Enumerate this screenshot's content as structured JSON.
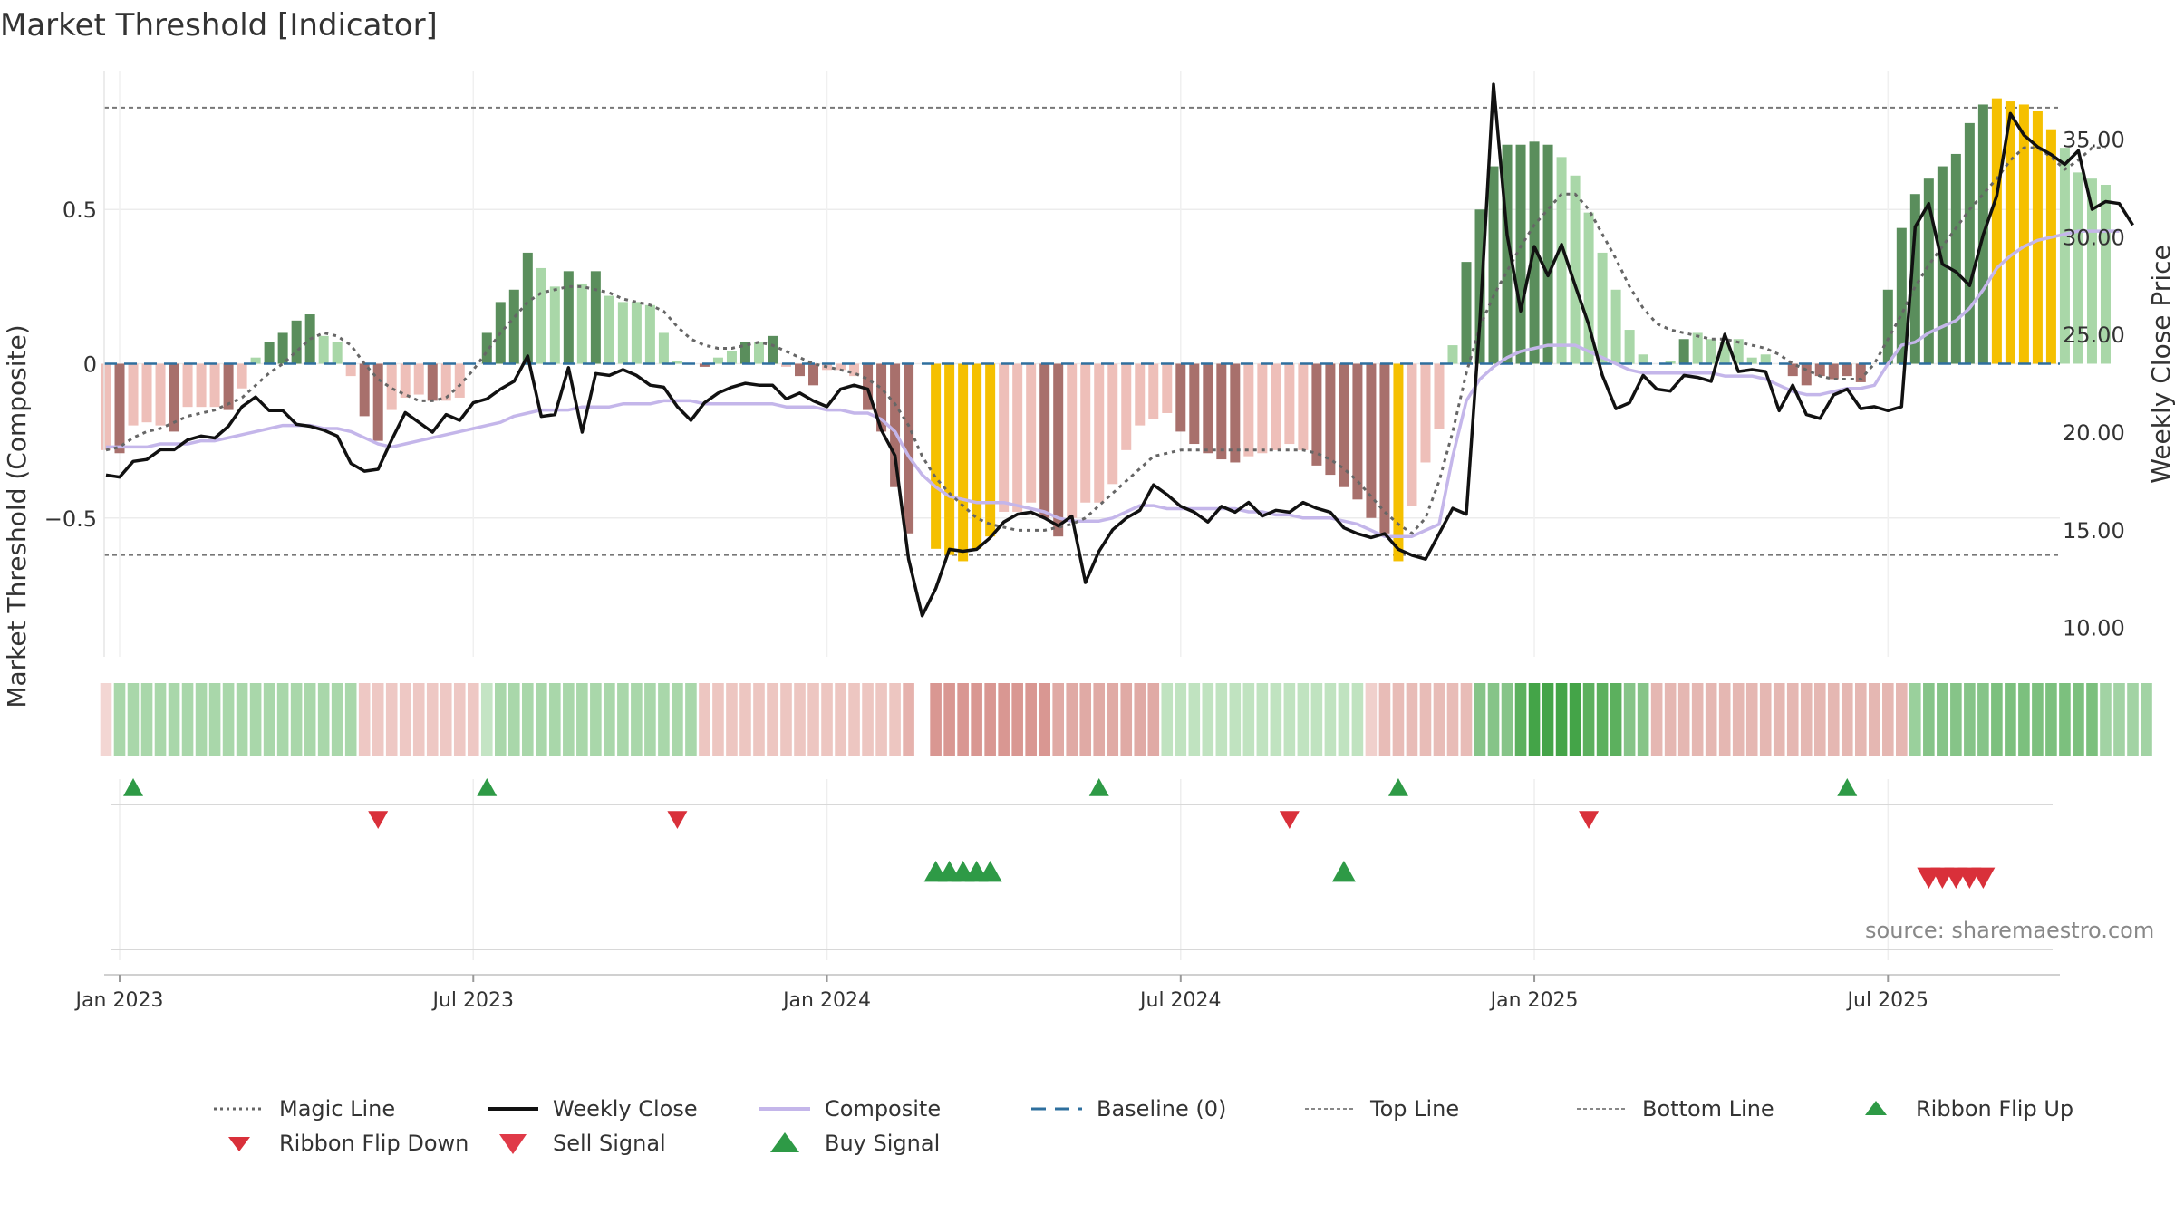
{
  "title": "Market Threshold [Indicator]",
  "source": "source: sharemaestro.com",
  "colors": {
    "pos_strong": "#5a8e5c",
    "pos_weak": "#a9d7a8",
    "neg_strong": "#a8706c",
    "neg_weak": "#eebfb9",
    "extreme": "#f5c000",
    "close_line": "#111111",
    "composite_line": "#c4b6ea",
    "magic_line": "#666666",
    "baseline": "#2e6f9e",
    "threshold": "#777777",
    "buy": "#2e9a46",
    "sell": "#d9303a"
  },
  "legend": [
    {
      "key": "magic",
      "label": "Magic Line"
    },
    {
      "key": "close",
      "label": "Weekly Close"
    },
    {
      "key": "composite",
      "label": "Composite"
    },
    {
      "key": "baseline",
      "label": "Baseline (0)"
    },
    {
      "key": "top",
      "label": "Top Line"
    },
    {
      "key": "bottom",
      "label": "Bottom Line"
    },
    {
      "key": "flipup",
      "label": "Ribbon Flip Up"
    },
    {
      "key": "flipdown",
      "label": "Ribbon Flip Down"
    },
    {
      "key": "sell",
      "label": "Sell Signal"
    },
    {
      "key": "buy",
      "label": "Buy Signal"
    }
  ],
  "chart_data": {
    "type": "bar",
    "title": "Market Threshold [Indicator]",
    "ylabel": "Market Threshold (Composite)",
    "y2label": "Weekly Close Price",
    "ylim": [
      -0.95,
      0.95
    ],
    "y2lim": [
      8.5,
      38.5
    ],
    "y_ticks": [
      "0.5",
      "0",
      "−0.5"
    ],
    "y_tick_values": [
      0.5,
      0,
      -0.5
    ],
    "y2_ticks": [
      "35.00",
      "30.00",
      "25.00",
      "20.00",
      "15.00",
      "10.00"
    ],
    "y2_tick_values": [
      35,
      30,
      25,
      20,
      15,
      10
    ],
    "x_ticks": [
      "Jan 2023",
      "Jul 2023",
      "Jan 2024",
      "Jul 2024",
      "Jan 2025",
      "Jul 2025"
    ],
    "x_tick_weeks": [
      1,
      27,
      53,
      79,
      105,
      131
    ],
    "x_unit": "week index (0 = 2022-12-26)",
    "top_line": 0.83,
    "bottom_line": -0.62,
    "baseline": 0,
    "composite_bars": [
      -0.28,
      -0.29,
      -0.2,
      -0.19,
      -0.2,
      -0.22,
      -0.14,
      -0.14,
      -0.14,
      -0.15,
      -0.08,
      0.02,
      0.07,
      0.1,
      0.14,
      0.16,
      0.09,
      0.07,
      -0.04,
      -0.17,
      -0.25,
      -0.15,
      -0.11,
      -0.1,
      -0.12,
      -0.12,
      -0.11,
      0.0,
      0.1,
      0.2,
      0.24,
      0.36,
      0.31,
      0.25,
      0.3,
      0.26,
      0.3,
      0.22,
      0.2,
      0.2,
      0.19,
      0.1,
      0.01,
      0.0,
      -0.01,
      0.02,
      0.04,
      0.07,
      0.07,
      0.09,
      -0.01,
      -0.04,
      -0.07,
      -0.02,
      -0.02,
      -0.04,
      -0.15,
      -0.22,
      -0.4,
      -0.55,
      0.0,
      -0.6,
      -0.62,
      -0.64,
      -0.6,
      -0.56,
      -0.48,
      -0.48,
      -0.45,
      -0.5,
      -0.56,
      -0.5,
      -0.45,
      -0.45,
      -0.39,
      -0.28,
      -0.2,
      -0.18,
      -0.16,
      -0.22,
      -0.26,
      -0.29,
      -0.31,
      -0.32,
      -0.3,
      -0.29,
      -0.28,
      -0.26,
      -0.28,
      -0.33,
      -0.36,
      -0.4,
      -0.44,
      -0.5,
      -0.55,
      -0.64,
      -0.46,
      -0.32,
      -0.21,
      0.06,
      0.33,
      0.5,
      0.64,
      0.71,
      0.71,
      0.72,
      0.71,
      0.67,
      0.61,
      0.49,
      0.36,
      0.24,
      0.11,
      0.03,
      0.0,
      0.01,
      0.08,
      0.1,
      0.08,
      0.07,
      0.08,
      0.02,
      0.03,
      0.0,
      -0.04,
      -0.07,
      -0.04,
      -0.05,
      -0.04,
      -0.06,
      0.0,
      0.24,
      0.44,
      0.55,
      0.6,
      0.64,
      0.68,
      0.78,
      0.84,
      0.86,
      0.85,
      0.84,
      0.82,
      0.76,
      0.7,
      0.62,
      0.6,
      0.58
    ],
    "bar_categories": [
      "nw",
      "ns",
      "nw",
      "nw",
      "nw",
      "ns",
      "nw",
      "nw",
      "nw",
      "ns",
      "nw",
      "pw",
      "ps",
      "ps",
      "ps",
      "ps",
      "pw",
      "pw",
      "nw",
      "ns",
      "ns",
      "nw",
      "nw",
      "nw",
      "ns",
      "nw",
      "nw",
      "pw",
      "ps",
      "ps",
      "ps",
      "ps",
      "pw",
      "pw",
      "ps",
      "pw",
      "ps",
      "pw",
      "pw",
      "pw",
      "pw",
      "pw",
      "pw",
      "pw",
      "ns",
      "pw",
      "pw",
      "ps",
      "pw",
      "ps",
      "nw",
      "ns",
      "ns",
      "nw",
      "nw",
      "nw",
      "ns",
      "ns",
      "ns",
      "ns",
      "nw",
      "ex",
      "ex",
      "ex",
      "ex",
      "ex",
      "nw",
      "nw",
      "nw",
      "ns",
      "ns",
      "nw",
      "nw",
      "nw",
      "nw",
      "nw",
      "nw",
      "nw",
      "nw",
      "ns",
      "ns",
      "ns",
      "ns",
      "ns",
      "nw",
      "nw",
      "nw",
      "nw",
      "nw",
      "ns",
      "ns",
      "ns",
      "ns",
      "ns",
      "ns",
      "ex",
      "nw",
      "nw",
      "nw",
      "pw",
      "ps",
      "ps",
      "ps",
      "ps",
      "ps",
      "ps",
      "ps",
      "pw",
      "pw",
      "pw",
      "pw",
      "pw",
      "pw",
      "pw",
      "pw",
      "pw",
      "ps",
      "pw",
      "pw",
      "pw",
      "pw",
      "pw",
      "pw",
      "pw",
      "ns",
      "ns",
      "ns",
      "ns",
      "ns",
      "ns",
      "pw",
      "ps",
      "ps",
      "ps",
      "ps",
      "ps",
      "ps",
      "ps",
      "ps",
      "ex",
      "ex",
      "ex",
      "ex",
      "ex",
      "pw",
      "pw",
      "pw",
      "pw"
    ],
    "series": [
      {
        "name": "Magic Line",
        "axis": "left",
        "style": "dotted",
        "values": [
          -0.28,
          -0.27,
          -0.24,
          -0.22,
          -0.21,
          -0.19,
          -0.17,
          -0.16,
          -0.15,
          -0.13,
          -0.11,
          -0.07,
          -0.03,
          0.0,
          0.04,
          0.08,
          0.1,
          0.09,
          0.06,
          0.0,
          -0.05,
          -0.08,
          -0.1,
          -0.12,
          -0.12,
          -0.11,
          -0.07,
          -0.02,
          0.04,
          0.1,
          0.15,
          0.2,
          0.23,
          0.24,
          0.25,
          0.25,
          0.24,
          0.23,
          0.21,
          0.2,
          0.19,
          0.17,
          0.12,
          0.08,
          0.06,
          0.05,
          0.05,
          0.06,
          0.07,
          0.06,
          0.04,
          0.02,
          0.0,
          -0.01,
          -0.02,
          -0.03,
          -0.05,
          -0.08,
          -0.13,
          -0.2,
          -0.3,
          -0.37,
          -0.42,
          -0.46,
          -0.5,
          -0.52,
          -0.53,
          -0.54,
          -0.54,
          -0.54,
          -0.53,
          -0.52,
          -0.5,
          -0.46,
          -0.42,
          -0.38,
          -0.34,
          -0.3,
          -0.29,
          -0.28,
          -0.28,
          -0.28,
          -0.28,
          -0.28,
          -0.28,
          -0.28,
          -0.28,
          -0.28,
          -0.28,
          -0.29,
          -0.31,
          -0.34,
          -0.38,
          -0.43,
          -0.48,
          -0.52,
          -0.55,
          -0.5,
          -0.38,
          -0.22,
          -0.03,
          0.12,
          0.22,
          0.3,
          0.38,
          0.45,
          0.5,
          0.55,
          0.55,
          0.5,
          0.42,
          0.34,
          0.25,
          0.18,
          0.13,
          0.11,
          0.1,
          0.09,
          0.08,
          0.08,
          0.07,
          0.06,
          0.05,
          0.03,
          0.0,
          -0.02,
          -0.04,
          -0.05,
          -0.05,
          -0.05,
          0.0,
          0.08,
          0.16,
          0.25,
          0.32,
          0.38,
          0.44,
          0.5,
          0.55,
          0.6,
          0.66,
          0.7,
          0.7,
          0.67,
          0.63,
          0.66,
          0.7,
          0.7
        ]
      },
      {
        "name": "Weekly Close",
        "axis": "right",
        "style": "solid",
        "values": [
          17.8,
          17.7,
          18.5,
          18.6,
          19.1,
          19.1,
          19.6,
          19.8,
          19.7,
          20.3,
          21.3,
          21.8,
          21.1,
          21.1,
          20.4,
          20.3,
          20.1,
          19.8,
          18.4,
          18.0,
          18.1,
          19.6,
          21.0,
          20.5,
          20.0,
          20.9,
          20.6,
          21.5,
          21.7,
          22.2,
          22.6,
          23.9,
          20.8,
          20.9,
          23.3,
          20.0,
          23.0,
          22.9,
          23.2,
          22.9,
          22.4,
          22.3,
          21.3,
          20.6,
          21.5,
          22.0,
          22.3,
          22.5,
          22.4,
          22.4,
          21.7,
          22.0,
          21.6,
          21.3,
          22.2,
          22.4,
          22.2,
          20.1,
          18.8,
          13.5,
          10.6,
          12.0,
          14.0,
          13.9,
          14.0,
          14.6,
          15.4,
          15.8,
          15.9,
          15.6,
          15.2,
          15.7,
          12.3,
          13.9,
          15.0,
          15.6,
          16.0,
          17.3,
          16.8,
          16.2,
          15.9,
          15.4,
          16.2,
          15.9,
          16.4,
          15.7,
          16.0,
          15.9,
          16.4,
          16.1,
          15.9,
          15.1,
          14.8,
          14.6,
          14.8,
          14.0,
          13.7,
          13.5,
          14.8,
          16.1,
          15.8,
          25.7,
          37.8,
          30.1,
          26.2,
          29.5,
          28.0,
          29.6,
          27.5,
          25.5,
          22.9,
          21.2,
          21.5,
          22.9,
          22.2,
          22.1,
          22.9,
          22.8,
          22.6,
          25.0,
          23.1,
          23.2,
          23.1,
          21.1,
          22.4,
          20.9,
          20.7,
          21.9,
          22.2,
          21.2,
          21.3,
          21.1,
          21.3,
          30.5,
          31.7,
          28.6,
          28.2,
          27.5,
          30.1,
          32.1,
          36.3,
          35.2,
          34.6,
          34.2,
          33.7,
          34.4,
          31.4,
          31.8,
          31.7,
          30.6
        ]
      },
      {
        "name": "Composite",
        "axis": "left",
        "style": "solid",
        "values": [
          -0.27,
          -0.27,
          -0.27,
          -0.27,
          -0.26,
          -0.26,
          -0.26,
          -0.25,
          -0.25,
          -0.24,
          -0.23,
          -0.22,
          -0.21,
          -0.2,
          -0.2,
          -0.2,
          -0.21,
          -0.21,
          -0.22,
          -0.24,
          -0.26,
          -0.27,
          -0.26,
          -0.25,
          -0.24,
          -0.23,
          -0.22,
          -0.21,
          -0.2,
          -0.19,
          -0.17,
          -0.16,
          -0.15,
          -0.15,
          -0.15,
          -0.14,
          -0.14,
          -0.14,
          -0.13,
          -0.13,
          -0.13,
          -0.12,
          -0.12,
          -0.12,
          -0.13,
          -0.13,
          -0.13,
          -0.13,
          -0.13,
          -0.13,
          -0.14,
          -0.14,
          -0.14,
          -0.15,
          -0.15,
          -0.16,
          -0.16,
          -0.18,
          -0.22,
          -0.3,
          -0.36,
          -0.4,
          -0.43,
          -0.44,
          -0.45,
          -0.45,
          -0.45,
          -0.46,
          -0.47,
          -0.48,
          -0.5,
          -0.51,
          -0.51,
          -0.51,
          -0.5,
          -0.48,
          -0.46,
          -0.46,
          -0.47,
          -0.47,
          -0.47,
          -0.47,
          -0.47,
          -0.47,
          -0.48,
          -0.48,
          -0.49,
          -0.49,
          -0.5,
          -0.5,
          -0.5,
          -0.51,
          -0.52,
          -0.54,
          -0.56,
          -0.56,
          -0.56,
          -0.54,
          -0.52,
          -0.3,
          -0.12,
          -0.05,
          -0.01,
          0.02,
          0.04,
          0.05,
          0.06,
          0.06,
          0.06,
          0.04,
          0.02,
          0.0,
          -0.02,
          -0.03,
          -0.03,
          -0.03,
          -0.03,
          -0.03,
          -0.03,
          -0.04,
          -0.04,
          -0.04,
          -0.05,
          -0.07,
          -0.09,
          -0.1,
          -0.1,
          -0.09,
          -0.08,
          -0.08,
          -0.07,
          0.0,
          0.06,
          0.07,
          0.1,
          0.12,
          0.14,
          0.18,
          0.24,
          0.31,
          0.35,
          0.38,
          0.4,
          0.41,
          0.42,
          0.43,
          0.43,
          0.43,
          0.43
        ]
      }
    ],
    "ribbon_colors": [
      "#f3d6d3",
      "#a9d7aa",
      "#a9d7aa",
      "#a9d7aa",
      "#a9d7aa",
      "#a9d7aa",
      "#a9d7aa",
      "#a9d7aa",
      "#a9d7aa",
      "#a9d7aa",
      "#a9d7aa",
      "#a9d7aa",
      "#a9d7aa",
      "#a9d7aa",
      "#a9d7aa",
      "#a9d7aa",
      "#a9d7aa",
      "#a9d7aa",
      "#a9d7aa",
      "#eec8c4",
      "#eec8c4",
      "#eec8c4",
      "#eec8c4",
      "#eec8c4",
      "#eec8c4",
      "#eec8c4",
      "#eec8c4",
      "#eec8c4",
      "#c4e4c4",
      "#a9d7aa",
      "#a9d7aa",
      "#a9d7aa",
      "#a9d7aa",
      "#a9d7aa",
      "#a9d7aa",
      "#a9d7aa",
      "#a9d7aa",
      "#a9d7aa",
      "#a9d7aa",
      "#a9d7aa",
      "#a9d7aa",
      "#a9d7aa",
      "#a9d7aa",
      "#a9d7aa",
      "#edc6c1",
      "#edc6c1",
      "#edc6c1",
      "#edc6c1",
      "#edc6c1",
      "#edc6c1",
      "#edc6c1",
      "#edc6c1",
      "#edc6c1",
      "#edc6c1",
      "#edc6c1",
      "#edc6c1",
      "#edc6c1",
      "#edc6c1",
      "#edc6c1",
      "#e6b2ad",
      "#ffffff",
      "#d99792",
      "#d99792",
      "#d99792",
      "#d99792",
      "#d99792",
      "#d99792",
      "#d99792",
      "#d99792",
      "#d99792",
      "#e0aaa5",
      "#e0aaa5",
      "#e0aaa5",
      "#e0aaa5",
      "#e0aaa5",
      "#e0aaa5",
      "#e0aaa5",
      "#e0aaa5",
      "#c0e3c0",
      "#c0e3c0",
      "#c0e3c0",
      "#c0e3c0",
      "#c0e3c0",
      "#c0e3c0",
      "#c0e3c0",
      "#c0e3c0",
      "#c0e3c0",
      "#c0e3c0",
      "#c0e3c0",
      "#c0e3c0",
      "#c0e3c0",
      "#c0e3c0",
      "#c0e3c0",
      "#f0d0cc",
      "#e8bcb7",
      "#e8bcb7",
      "#e8bcb7",
      "#e8bcb7",
      "#e8bcb7",
      "#e8bcb7",
      "#e8bcb7",
      "#86c488",
      "#86c488",
      "#86c488",
      "#5cb05e",
      "#44a448",
      "#44a448",
      "#44a448",
      "#44a448",
      "#5cb05e",
      "#5cb05e",
      "#5cb05e",
      "#86c488",
      "#86c488",
      "#e5b7b2",
      "#e5b7b2",
      "#e5b7b2",
      "#e5b7b2",
      "#e5b7b2",
      "#e5b7b2",
      "#e5b7b2",
      "#e5b7b2",
      "#e5b7b2",
      "#e5b7b2",
      "#e5b7b2",
      "#e5b7b2",
      "#e5b7b2",
      "#e5b7b2",
      "#e5b7b2",
      "#e5b7b2",
      "#e5b7b2",
      "#e5b7b2",
      "#e5b7b2",
      "#9ad09c",
      "#86c488",
      "#86c488",
      "#86c488",
      "#86c488",
      "#86c488",
      "#7cc07e",
      "#7cc07e",
      "#7cc07e",
      "#7cc07e",
      "#7cc07e",
      "#7cc07e",
      "#7cc07e",
      "#7cc07e",
      "#a2d3a4",
      "#a2d3a4",
      "#a2d3a4",
      "#a2d3a4"
    ],
    "ribbon_flip_up": [
      2,
      28,
      73,
      95,
      128
    ],
    "ribbon_flip_down": [
      20,
      42,
      87,
      109
    ],
    "buy_signals": [
      61,
      62,
      63,
      64,
      65,
      91
    ],
    "sell_signals": [
      134,
      135,
      136,
      137,
      138
    ]
  }
}
